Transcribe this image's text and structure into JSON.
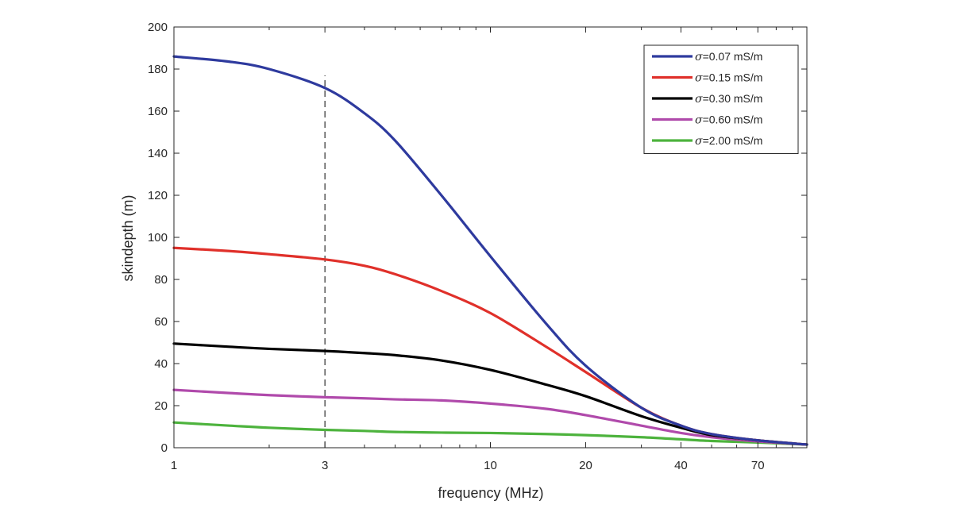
{
  "chart_data": {
    "type": "line",
    "xlabel": "frequency (MHz)",
    "ylabel": "skindepth (m)",
    "xscale": "log",
    "xlim": [
      1,
      100
    ],
    "ylim": [
      0,
      200
    ],
    "x_ticks": [
      1,
      3,
      10,
      20,
      40,
      70
    ],
    "x_tick_labels": [
      "1",
      "3",
      "10",
      "20",
      "40",
      "70"
    ],
    "y_ticks": [
      0,
      20,
      40,
      60,
      80,
      100,
      120,
      140,
      160,
      180,
      200
    ],
    "y_tick_labels": [
      "0",
      "20",
      "40",
      "60",
      "80",
      "100",
      "120",
      "140",
      "160",
      "180",
      "200"
    ],
    "grid": false,
    "box": true,
    "legend_position": "top-right",
    "reference_line": {
      "x": 3,
      "y_range": [
        0,
        177
      ],
      "style": "dashed",
      "color": "#000000"
    },
    "x": [
      1,
      1.5,
      2,
      3,
      4,
      5,
      7,
      10,
      15,
      20,
      30,
      40,
      50,
      70,
      100
    ],
    "series": [
      {
        "name": "σ=0.07 mS/m",
        "color": "#2e3a9e",
        "values": [
          186,
          183.5,
          180,
          171,
          159,
          146,
          120,
          91,
          59,
          39,
          19,
          10.5,
          6.5,
          3.5,
          1.5
        ]
      },
      {
        "name": "σ=0.15 mS/m",
        "color": "#e0302a",
        "values": [
          95,
          93.5,
          92,
          89.5,
          86.5,
          82.5,
          74.5,
          64,
          48,
          36,
          19,
          10.5,
          6.5,
          3.5,
          1.5
        ]
      },
      {
        "name": "σ=0.30 mS/m",
        "color": "#000000",
        "values": [
          49.5,
          48,
          47,
          46,
          45,
          44,
          41.5,
          37,
          30,
          24.5,
          15,
          9.5,
          6,
          3.5,
          1.5
        ]
      },
      {
        "name": "σ=0.60 mS/m",
        "color": "#b04aab",
        "values": [
          27.5,
          26,
          25,
          24,
          23.5,
          23,
          22.5,
          21,
          18.5,
          15.5,
          10.5,
          7,
          5,
          3,
          1.5
        ]
      },
      {
        "name": "σ=2.00 mS/m",
        "color": "#4db33d",
        "values": [
          12,
          10.5,
          9.5,
          8.5,
          8,
          7.5,
          7.2,
          7,
          6.5,
          6,
          5,
          4,
          3.2,
          2.5,
          1.5
        ]
      }
    ]
  }
}
